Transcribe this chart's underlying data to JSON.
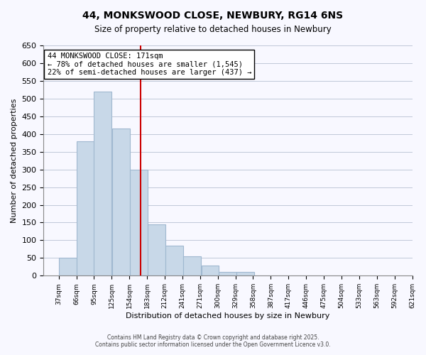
{
  "title": "44, MONKSWOOD CLOSE, NEWBURY, RG14 6NS",
  "subtitle": "Size of property relative to detached houses in Newbury",
  "xlabel": "Distribution of detached houses by size in Newbury",
  "ylabel": "Number of detached properties",
  "bar_values": [
    50,
    380,
    520,
    415,
    300,
    145,
    85,
    55,
    28,
    10,
    10,
    0,
    0,
    0,
    0,
    0,
    0
  ],
  "bin_labels": [
    "37sqm",
    "66sqm",
    "95sqm",
    "125sqm",
    "154sqm",
    "183sqm",
    "212sqm",
    "241sqm",
    "271sqm",
    "300sqm",
    "329sqm",
    "358sqm",
    "387sqm",
    "417sqm",
    "446sqm",
    "475sqm",
    "504sqm",
    "533sqm",
    "563sqm",
    "592sqm",
    "621sqm"
  ],
  "bar_color": "#c8d8e8",
  "bar_edge_color": "#a0b8d0",
  "property_line_x": 171,
  "property_line_label": "44 MONKSWOOD CLOSE: 171sqm",
  "annotation_line1": "← 78% of detached houses are smaller (1,545)",
  "annotation_line2": "22% of semi-detached houses are larger (437) →",
  "annotation_box_color": "white",
  "annotation_box_edge": "black",
  "red_line_color": "#cc0000",
  "ylim": [
    0,
    650
  ],
  "yticks": [
    0,
    50,
    100,
    150,
    200,
    250,
    300,
    350,
    400,
    450,
    500,
    550,
    600,
    650
  ],
  "footer_line1": "Contains HM Land Registry data © Crown copyright and database right 2025.",
  "footer_line2": "Contains public sector information licensed under the Open Government Licence v3.0.",
  "background_color": "#f8f8ff",
  "bin_width": 29,
  "num_bins": 17,
  "bin_starts": [
    37,
    66,
    95,
    125,
    154,
    183,
    212,
    241,
    271,
    300,
    329,
    358,
    387,
    417,
    446,
    475,
    504
  ]
}
